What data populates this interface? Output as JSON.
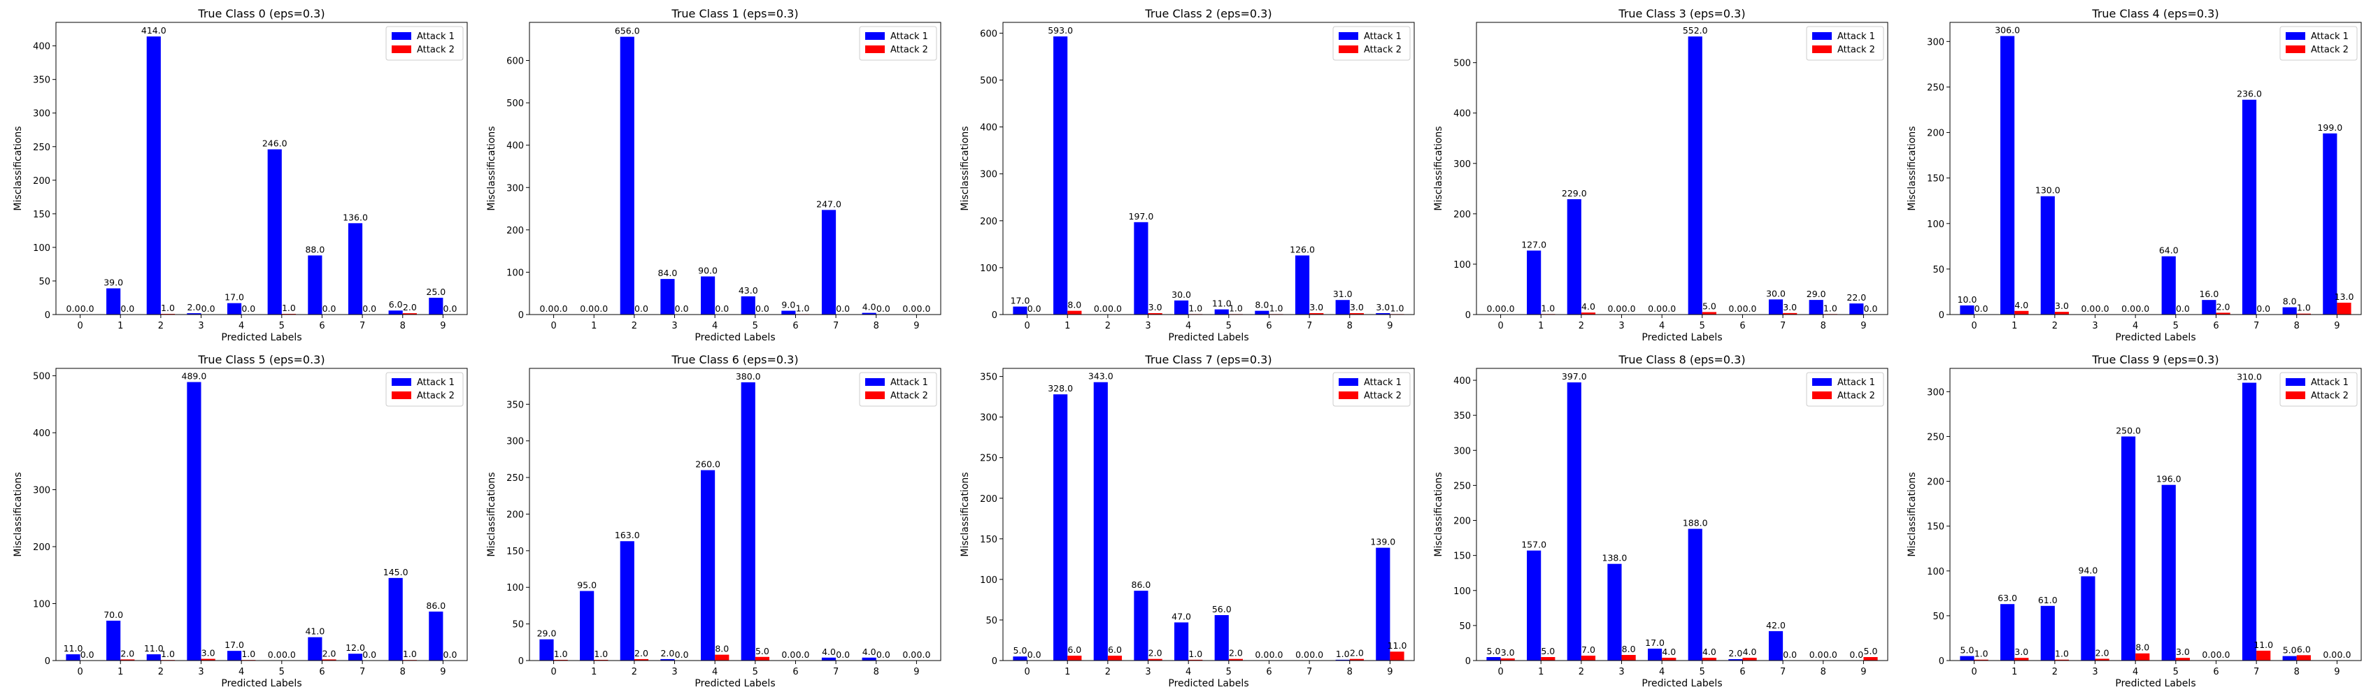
{
  "figure": {
    "colors": {
      "attack1": "#0000ff",
      "attack2": "#ff0000"
    },
    "legend_placement": "upper right"
  },
  "chart_data": [
    {
      "type": "bar",
      "title": "True Class 0 (eps=0.3)",
      "xlabel": "Predicted Labels",
      "ylabel": "Misclassifications",
      "categories": [
        "0",
        "1",
        "2",
        "3",
        "4",
        "5",
        "6",
        "7",
        "8",
        "9"
      ],
      "ylim": [
        0,
        435
      ],
      "yticks": [
        0,
        50,
        100,
        150,
        200,
        250,
        300,
        350,
        400
      ],
      "series": [
        {
          "name": "Attack 1",
          "values": [
            0,
            39,
            414,
            2,
            17,
            246,
            88,
            136,
            6,
            25
          ]
        },
        {
          "name": "Attack 2",
          "values": [
            0,
            0,
            1,
            0,
            0,
            1,
            0,
            0,
            2,
            0
          ]
        }
      ]
    },
    {
      "type": "bar",
      "title": "True Class 1 (eps=0.3)",
      "xlabel": "Predicted Labels",
      "ylabel": "Misclassifications",
      "categories": [
        "0",
        "1",
        "2",
        "3",
        "4",
        "5",
        "6",
        "7",
        "8",
        "9"
      ],
      "ylim": [
        0,
        690
      ],
      "yticks": [
        0,
        100,
        200,
        300,
        400,
        500,
        600
      ],
      "series": [
        {
          "name": "Attack 1",
          "values": [
            0,
            0,
            656,
            84,
            90,
            43,
            9,
            247,
            4,
            0
          ]
        },
        {
          "name": "Attack 2",
          "values": [
            0,
            0,
            0,
            0,
            0,
            0,
            1,
            0,
            0,
            0
          ]
        }
      ]
    },
    {
      "type": "bar",
      "title": "True Class 2 (eps=0.3)",
      "xlabel": "Predicted Labels",
      "ylabel": "Misclassifications",
      "categories": [
        "0",
        "1",
        "2",
        "3",
        "4",
        "5",
        "6",
        "7",
        "8",
        "9"
      ],
      "ylim": [
        0,
        623
      ],
      "yticks": [
        0,
        100,
        200,
        300,
        400,
        500,
        600
      ],
      "series": [
        {
          "name": "Attack 1",
          "values": [
            17,
            593,
            0,
            197,
            30,
            11,
            8,
            126,
            31,
            3
          ]
        },
        {
          "name": "Attack 2",
          "values": [
            0,
            8,
            0,
            3,
            1,
            1,
            1,
            3,
            3,
            1
          ]
        }
      ]
    },
    {
      "type": "bar",
      "title": "True Class 3 (eps=0.3)",
      "xlabel": "Predicted Labels",
      "ylabel": "Misclassifications",
      "categories": [
        "0",
        "1",
        "2",
        "3",
        "4",
        "5",
        "6",
        "7",
        "8",
        "9"
      ],
      "ylim": [
        0,
        580
      ],
      "yticks": [
        0,
        100,
        200,
        300,
        400,
        500
      ],
      "series": [
        {
          "name": "Attack 1",
          "values": [
            0,
            127,
            229,
            0,
            0,
            552,
            0,
            30,
            29,
            22
          ]
        },
        {
          "name": "Attack 2",
          "values": [
            0,
            1,
            4,
            0,
            0,
            5,
            0,
            3,
            1,
            0
          ]
        }
      ]
    },
    {
      "type": "bar",
      "title": "True Class 4 (eps=0.3)",
      "xlabel": "Predicted Labels",
      "ylabel": "Misclassifications",
      "categories": [
        "0",
        "1",
        "2",
        "3",
        "4",
        "5",
        "6",
        "7",
        "8",
        "9"
      ],
      "ylim": [
        0,
        321
      ],
      "yticks": [
        0,
        50,
        100,
        150,
        200,
        250,
        300
      ],
      "series": [
        {
          "name": "Attack 1",
          "values": [
            10,
            306,
            130,
            0,
            0,
            64,
            16,
            236,
            8,
            199
          ]
        },
        {
          "name": "Attack 2",
          "values": [
            0,
            4,
            3,
            0,
            0,
            0,
            2,
            0,
            1,
            13
          ]
        }
      ]
    },
    {
      "type": "bar",
      "title": "True Class 5 (eps=0.3)",
      "xlabel": "Predicted Labels",
      "ylabel": "Misclassifications",
      "categories": [
        "0",
        "1",
        "2",
        "3",
        "4",
        "5",
        "6",
        "7",
        "8",
        "9"
      ],
      "ylim": [
        0,
        513
      ],
      "yticks": [
        0,
        100,
        200,
        300,
        400,
        500
      ],
      "series": [
        {
          "name": "Attack 1",
          "values": [
            11,
            70,
            11,
            489,
            17,
            0,
            41,
            12,
            145,
            86
          ]
        },
        {
          "name": "Attack 2",
          "values": [
            0,
            2,
            1,
            3,
            1,
            0,
            2,
            0,
            1,
            0
          ]
        }
      ]
    },
    {
      "type": "bar",
      "title": "True Class 6 (eps=0.3)",
      "xlabel": "Predicted Labels",
      "ylabel": "Misclassifications",
      "categories": [
        "0",
        "1",
        "2",
        "3",
        "4",
        "5",
        "6",
        "7",
        "8",
        "9"
      ],
      "ylim": [
        0,
        399
      ],
      "yticks": [
        0,
        50,
        100,
        150,
        200,
        250,
        300,
        350
      ],
      "series": [
        {
          "name": "Attack 1",
          "values": [
            29,
            95,
            163,
            2,
            260,
            380,
            0,
            4,
            4,
            0
          ]
        },
        {
          "name": "Attack 2",
          "values": [
            1,
            1,
            2,
            0,
            8,
            5,
            0,
            0,
            0,
            0
          ]
        }
      ]
    },
    {
      "type": "bar",
      "title": "True Class 7 (eps=0.3)",
      "xlabel": "Predicted Labels",
      "ylabel": "Misclassifications",
      "categories": [
        "0",
        "1",
        "2",
        "3",
        "4",
        "5",
        "6",
        "7",
        "8",
        "9"
      ],
      "ylim": [
        0,
        360
      ],
      "yticks": [
        0,
        50,
        100,
        150,
        200,
        250,
        300,
        350
      ],
      "series": [
        {
          "name": "Attack 1",
          "values": [
            5,
            328,
            343,
            86,
            47,
            56,
            0,
            0,
            1,
            139
          ]
        },
        {
          "name": "Attack 2",
          "values": [
            0,
            6,
            6,
            2,
            1,
            2,
            0,
            0,
            2,
            11
          ]
        }
      ]
    },
    {
      "type": "bar",
      "title": "True Class 8 (eps=0.3)",
      "xlabel": "Predicted Labels",
      "ylabel": "Misclassifications",
      "categories": [
        "0",
        "1",
        "2",
        "3",
        "4",
        "5",
        "6",
        "7",
        "8",
        "9"
      ],
      "ylim": [
        0,
        417
      ],
      "yticks": [
        0,
        50,
        100,
        150,
        200,
        250,
        300,
        350,
        400
      ],
      "series": [
        {
          "name": "Attack 1",
          "values": [
            5,
            157,
            397,
            138,
            17,
            188,
            2,
            42,
            0,
            0
          ]
        },
        {
          "name": "Attack 2",
          "values": [
            3,
            5,
            7,
            8,
            4,
            4,
            4,
            0,
            0,
            5
          ]
        }
      ]
    },
    {
      "type": "bar",
      "title": "True Class 9 (eps=0.3)",
      "xlabel": "Predicted Labels",
      "ylabel": "Misclassifications",
      "categories": [
        "0",
        "1",
        "2",
        "3",
        "4",
        "5",
        "6",
        "7",
        "8",
        "9"
      ],
      "ylim": [
        0,
        326
      ],
      "yticks": [
        0,
        50,
        100,
        150,
        200,
        250,
        300
      ],
      "series": [
        {
          "name": "Attack 1",
          "values": [
            5,
            63,
            61,
            94,
            250,
            196,
            0,
            310,
            5,
            0
          ]
        },
        {
          "name": "Attack 2",
          "values": [
            1,
            3,
            1,
            2,
            8,
            3,
            0,
            11,
            6,
            0
          ]
        }
      ]
    }
  ]
}
